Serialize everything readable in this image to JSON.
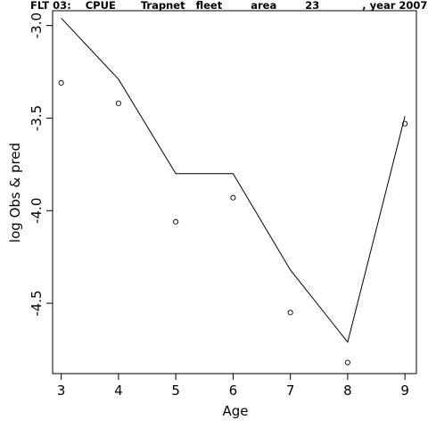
{
  "chart_data": {
    "type": "line",
    "title": "FLT 03:    CPUE       Trapnet   fleet        area        23            , year 2007",
    "xlabel": "Age",
    "ylabel": "log Obs & pred",
    "xlim": [
      2.85,
      9.2
    ],
    "ylim": [
      -4.88,
      -2.92
    ],
    "xticks": [
      3,
      4,
      5,
      6,
      7,
      8,
      9
    ],
    "xtick_labels": [
      "3",
      "4",
      "5",
      "6",
      "7",
      "8",
      "9"
    ],
    "yticks": [
      -3.0,
      -3.5,
      -4.0,
      -4.5
    ],
    "ytick_labels": [
      "-3.0",
      "-3.5",
      "-4.0",
      "-4.5"
    ],
    "grid": false,
    "legend": "none",
    "series": [
      {
        "style": "line",
        "x": [
          3,
          4,
          5,
          6,
          7,
          8,
          9
        ],
        "y": [
          -2.96,
          -3.29,
          -3.8,
          -3.8,
          -4.32,
          -4.71,
          -3.49
        ]
      },
      {
        "style": "points",
        "x": [
          3,
          4,
          5,
          6,
          7,
          8,
          9
        ],
        "y": [
          -3.31,
          -3.42,
          -4.06,
          -3.93,
          -4.55,
          -4.82,
          -3.53
        ]
      }
    ]
  }
}
